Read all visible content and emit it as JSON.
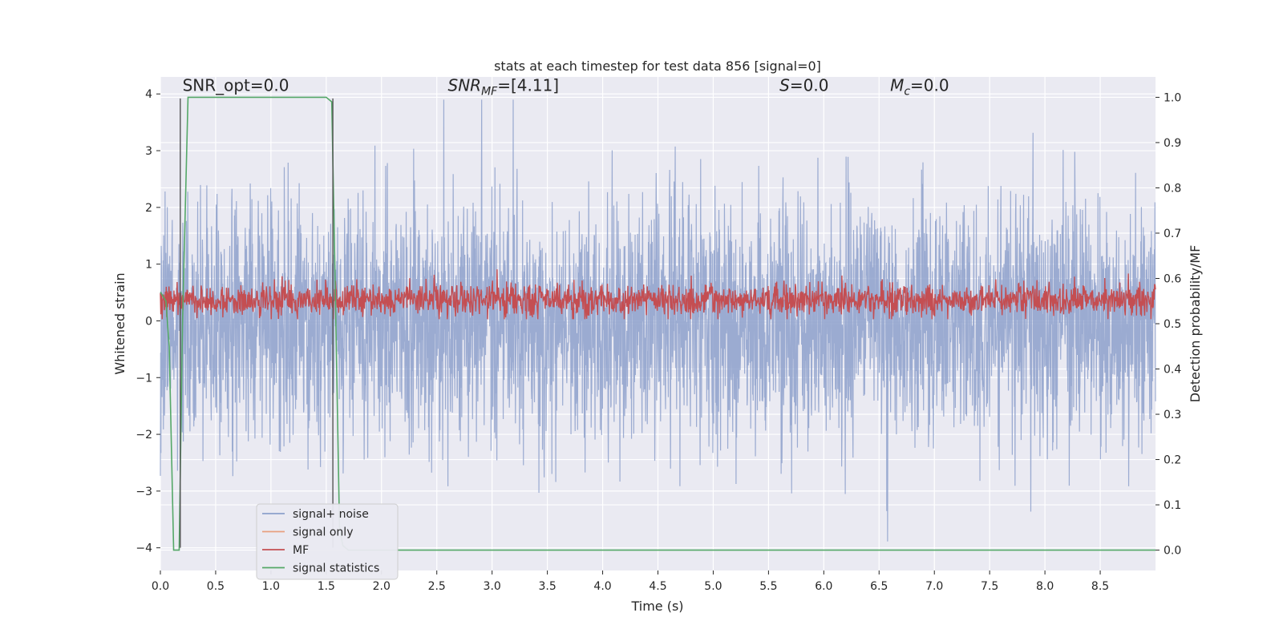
{
  "chart_data": {
    "type": "line",
    "title": "stats at each timestep for test data 856 [signal=0]",
    "xlabel": "Time (s)",
    "ylabel": "Whitened strain",
    "ylabel_right": "Detection probability/MF",
    "xlim": [
      0.0,
      9.0
    ],
    "ylim": [
      -4.4,
      4.3
    ],
    "ylim_right": [
      -0.045,
      1.045
    ],
    "x_ticks": [
      "0.0",
      "0.5",
      "1.0",
      "1.5",
      "2.0",
      "2.5",
      "3.0",
      "3.5",
      "4.0",
      "4.5",
      "5.0",
      "5.5",
      "6.0",
      "6.5",
      "7.0",
      "7.5",
      "8.0",
      "8.5"
    ],
    "y_ticks": [
      "4",
      "3",
      "2",
      "1",
      "0",
      "−1",
      "−2",
      "−3",
      "−4"
    ],
    "y_ticks_right": [
      "1.0",
      "0.9",
      "0.8",
      "0.7",
      "0.6",
      "0.5",
      "0.4",
      "0.3",
      "0.2",
      "0.1",
      "0.0"
    ],
    "grid": true,
    "legend_position": "lower-left",
    "series": [
      {
        "name": "signal+ noise",
        "color": "#8da0cb",
        "axis": "left",
        "description": "whitened noise, roughly within -3.5 to 3.9, 9 s at high sample rate"
      },
      {
        "name": "signal only",
        "color": "#e8a07f",
        "axis": "left",
        "values": "zero"
      },
      {
        "name": "MF",
        "color": "#c44e52",
        "axis": "right",
        "description": "matched-filter output fluctuating about 0.55 (range 0.51 to 0.62)"
      },
      {
        "name": "signal statistics",
        "color": "#55a868",
        "axis": "right",
        "x": [
          0.0,
          0.05,
          0.08,
          0.12,
          0.17,
          0.2,
          0.25,
          0.3,
          0.5,
          1.0,
          1.5,
          1.55,
          1.58,
          1.62,
          1.65,
          1.7,
          2.0,
          5.0,
          9.0
        ],
        "y": [
          0.57,
          0.55,
          0.45,
          0.0,
          0.0,
          0.5,
          1.0,
          1.0,
          1.0,
          1.0,
          1.0,
          0.99,
          0.6,
          0.05,
          0.01,
          0.0,
          0.0,
          0.0,
          0.0
        ]
      }
    ],
    "annotations": [
      {
        "text": "SNR_opt=0.0",
        "x": 0.2,
        "y": 4.15
      },
      {
        "text_main": "SNR",
        "text_sub": "MF",
        "text_rest": "=[4.11]",
        "x": 2.6,
        "y": 4.15
      },
      {
        "text_main": "S",
        "text_sub": "",
        "text_rest": "=0.0",
        "x": 5.6,
        "y": 4.15
      },
      {
        "text_main": "M",
        "text_sub": "c",
        "text_rest": "=0.0",
        "x": 6.6,
        "y": 4.15
      }
    ],
    "vlines": [
      {
        "x": 0.18,
        "color": "#555555"
      },
      {
        "x": 1.56,
        "color": "#555555"
      }
    ]
  }
}
